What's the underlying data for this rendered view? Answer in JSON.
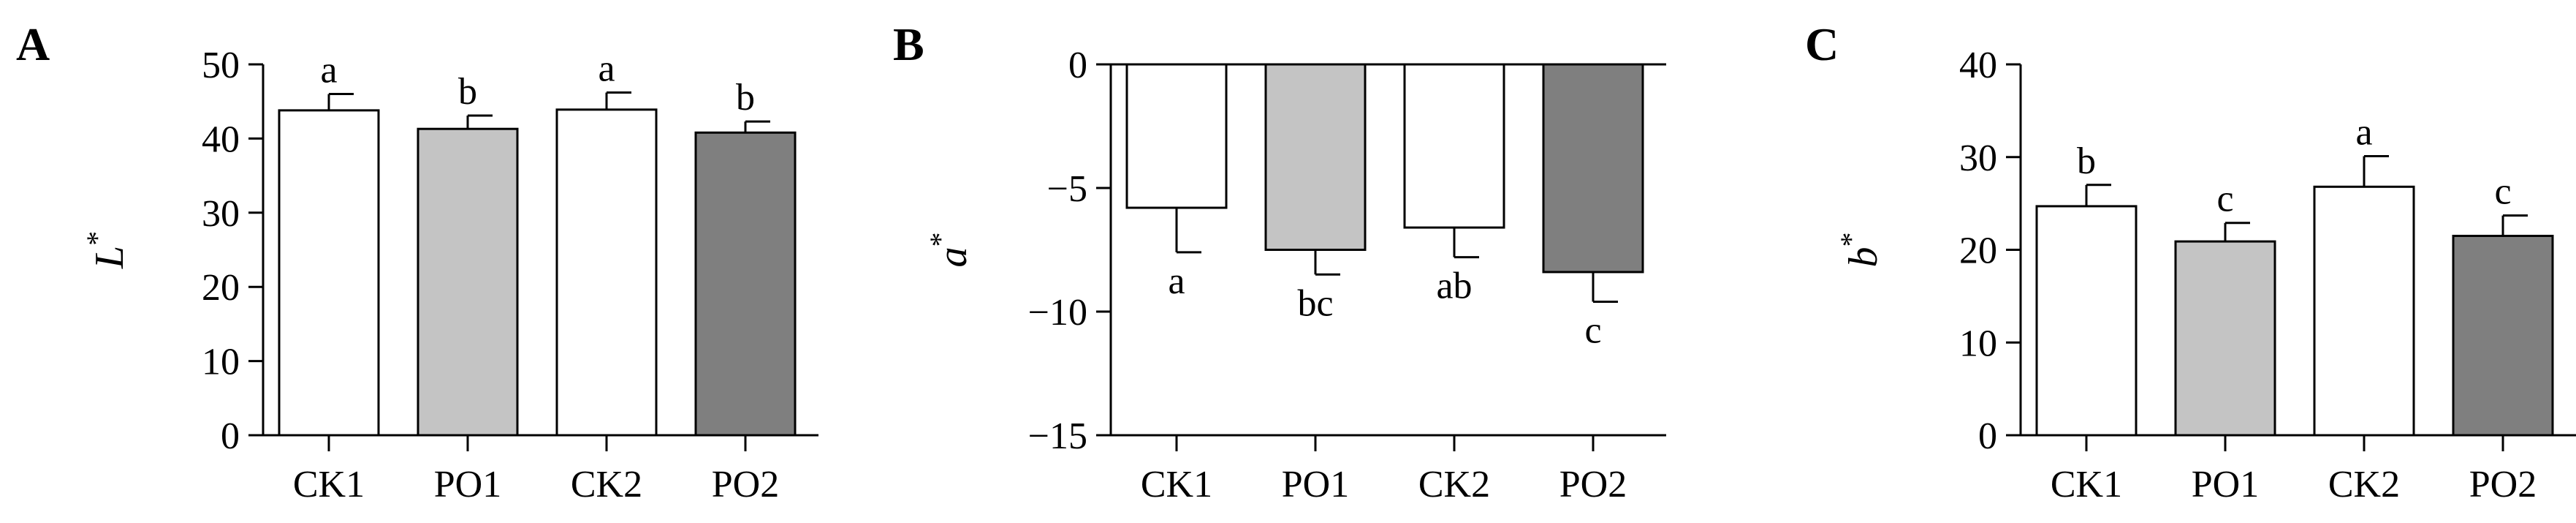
{
  "chart_data": [
    {
      "type": "bar",
      "panel": "A",
      "ylabel": "L",
      "ylabel_superscript": "*",
      "categories": [
        "CK1",
        "PO1",
        "CK2",
        "PO2"
      ],
      "values": [
        43.8,
        41.3,
        43.9,
        40.8
      ],
      "errors": [
        2.2,
        1.8,
        2.3,
        1.5
      ],
      "significance": [
        "a",
        "b",
        "a",
        "b"
      ],
      "colors": [
        "#ffffff",
        "#c4c4c4",
        "#ffffff",
        "#7f7f7f"
      ],
      "ylim": [
        0,
        50
      ],
      "yticks": [
        0,
        10,
        20,
        30,
        40,
        50
      ],
      "ytick_labels": [
        "0",
        "10",
        "20",
        "30",
        "40",
        "50"
      ],
      "category_axis_position": "bottom",
      "grid": false,
      "legend": "none"
    },
    {
      "type": "bar",
      "panel": "B",
      "ylabel": "a",
      "ylabel_superscript": "*",
      "categories": [
        "CK1",
        "PO1",
        "CK2",
        "PO2"
      ],
      "values": [
        -5.8,
        -7.5,
        -6.6,
        -8.4
      ],
      "errors": [
        1.8,
        1.0,
        1.2,
        1.2
      ],
      "significance": [
        "a",
        "bc",
        "ab",
        "c"
      ],
      "colors": [
        "#ffffff",
        "#c4c4c4",
        "#ffffff",
        "#7f7f7f"
      ],
      "ylim": [
        -15,
        0
      ],
      "yticks": [
        -15,
        -10,
        -5,
        0
      ],
      "ytick_labels": [
        "−15",
        "−10",
        "−5",
        "0"
      ],
      "category_axis_position": "bottom",
      "grid": false,
      "legend": "none"
    },
    {
      "type": "bar",
      "panel": "C",
      "ylabel": "b",
      "ylabel_superscript": "*",
      "categories": [
        "CK1",
        "PO1",
        "CK2",
        "PO2"
      ],
      "values": [
        24.7,
        20.9,
        26.8,
        21.5
      ],
      "errors": [
        2.3,
        2.0,
        3.3,
        2.2
      ],
      "significance": [
        "b",
        "c",
        "a",
        "c"
      ],
      "colors": [
        "#ffffff",
        "#c4c4c4",
        "#ffffff",
        "#7f7f7f"
      ],
      "ylim": [
        0,
        40
      ],
      "yticks": [
        0,
        10,
        20,
        30,
        40
      ],
      "ytick_labels": [
        "0",
        "10",
        "20",
        "30",
        "40"
      ],
      "category_axis_position": "bottom",
      "grid": false,
      "legend": "none"
    }
  ]
}
